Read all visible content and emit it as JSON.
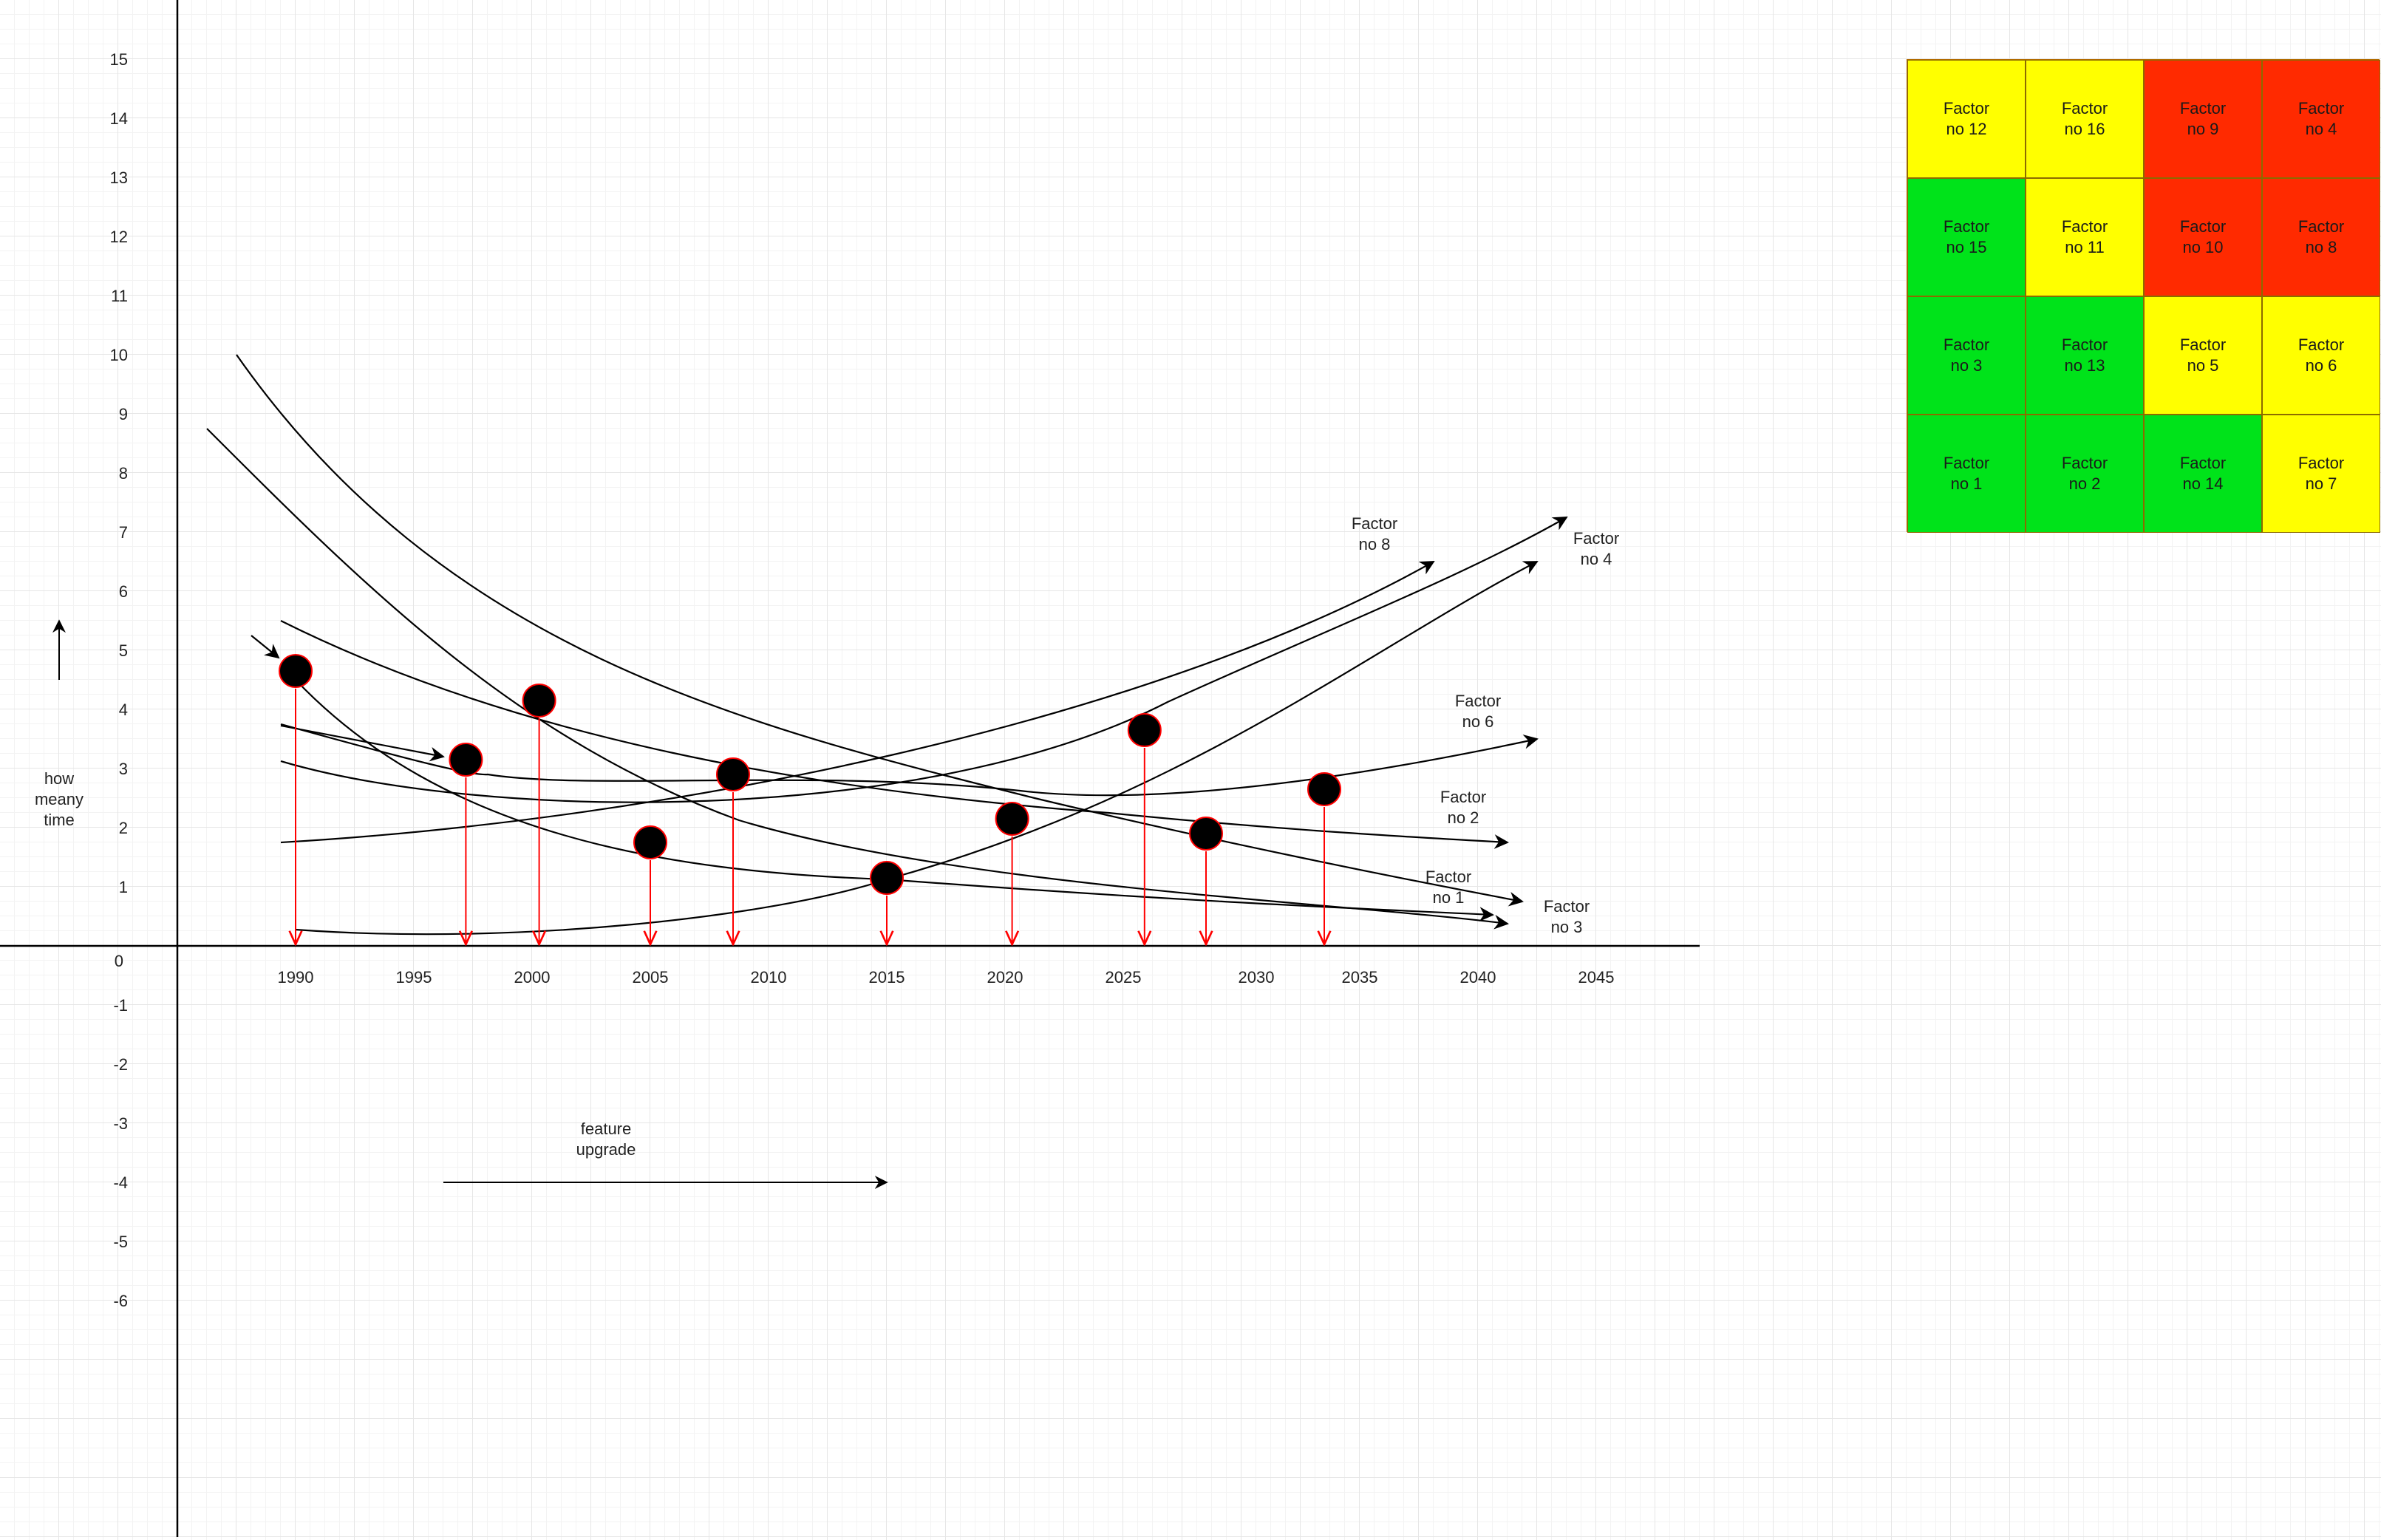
{
  "colors": {
    "yellow": "#ffff00",
    "green": "#00e31a",
    "red": "#ff2a00",
    "curve": "#000000",
    "dropline": "#ff0000",
    "marker_fill": "#000000",
    "marker_stroke": "#ff0000"
  },
  "y_axis": {
    "label": [
      "how",
      "meany",
      "time"
    ],
    "ticks": [
      "15",
      "14",
      "13",
      "12",
      "11",
      "10",
      "9",
      "8",
      "7",
      "6",
      "5",
      "4",
      "3",
      "2",
      "1",
      "0",
      "-1",
      "-2",
      "-3",
      "-4",
      "-5",
      "-6"
    ]
  },
  "x_axis": {
    "ticks": [
      "1990",
      "1995",
      "2000",
      "2005",
      "2010",
      "2015",
      "2020",
      "2025",
      "2030",
      "2035",
      "2040",
      "2045"
    ]
  },
  "feature_label": [
    "feature",
    "upgrade"
  ],
  "curve_labels": [
    {
      "id": "factor-8",
      "lines": [
        "Factor",
        "no 8"
      ]
    },
    {
      "id": "factor-4",
      "lines": [
        "Factor",
        "no 4"
      ]
    },
    {
      "id": "factor-6",
      "lines": [
        "Factor",
        "no 6"
      ]
    },
    {
      "id": "factor-2",
      "lines": [
        "Factor",
        "no 2"
      ]
    },
    {
      "id": "factor-1",
      "lines": [
        "Factor",
        "no 1"
      ]
    },
    {
      "id": "factor-3",
      "lines": [
        "Factor",
        "no 3"
      ]
    }
  ],
  "markers": [
    {
      "year": 1990,
      "value": 4.65
    },
    {
      "year": 1997.2,
      "value": 3.15
    },
    {
      "year": 2000.3,
      "value": 4.15
    },
    {
      "year": 2005,
      "value": 1.75
    },
    {
      "year": 2008.5,
      "value": 2.9
    },
    {
      "year": 2015,
      "value": 1.15
    },
    {
      "year": 2020.3,
      "value": 2.15
    },
    {
      "year": 2025.9,
      "value": 3.65
    },
    {
      "year": 2028.5,
      "value": 1.9
    },
    {
      "year": 2033.5,
      "value": 2.65
    }
  ],
  "factor_grid": [
    [
      {
        "text": [
          "Factor",
          "no 12"
        ],
        "color": "yellow"
      },
      {
        "text": [
          "Factor",
          "no 16"
        ],
        "color": "yellow"
      },
      {
        "text": [
          "Factor",
          "no 9"
        ],
        "color": "red"
      },
      {
        "text": [
          "Factor",
          "no 4"
        ],
        "color": "red"
      }
    ],
    [
      {
        "text": [
          "Factor",
          "no 15"
        ],
        "color": "green"
      },
      {
        "text": [
          "Factor",
          "no 11"
        ],
        "color": "yellow"
      },
      {
        "text": [
          "Factor",
          "no 10"
        ],
        "color": "red"
      },
      {
        "text": [
          "Factor",
          "no 8"
        ],
        "color": "red"
      }
    ],
    [
      {
        "text": [
          "Factor",
          "no 3"
        ],
        "color": "green"
      },
      {
        "text": [
          "Factor",
          "no 13"
        ],
        "color": "green"
      },
      {
        "text": [
          "Factor",
          "no 5"
        ],
        "color": "yellow"
      },
      {
        "text": [
          "Factor",
          "no 6"
        ],
        "color": "yellow"
      }
    ],
    [
      {
        "text": [
          "Factor",
          "no 1"
        ],
        "color": "green"
      },
      {
        "text": [
          "Factor",
          "no 2"
        ],
        "color": "green"
      },
      {
        "text": [
          "Factor",
          "no 14"
        ],
        "color": "green"
      },
      {
        "text": [
          "Factor",
          "no 7"
        ],
        "color": "yellow"
      }
    ]
  ]
}
